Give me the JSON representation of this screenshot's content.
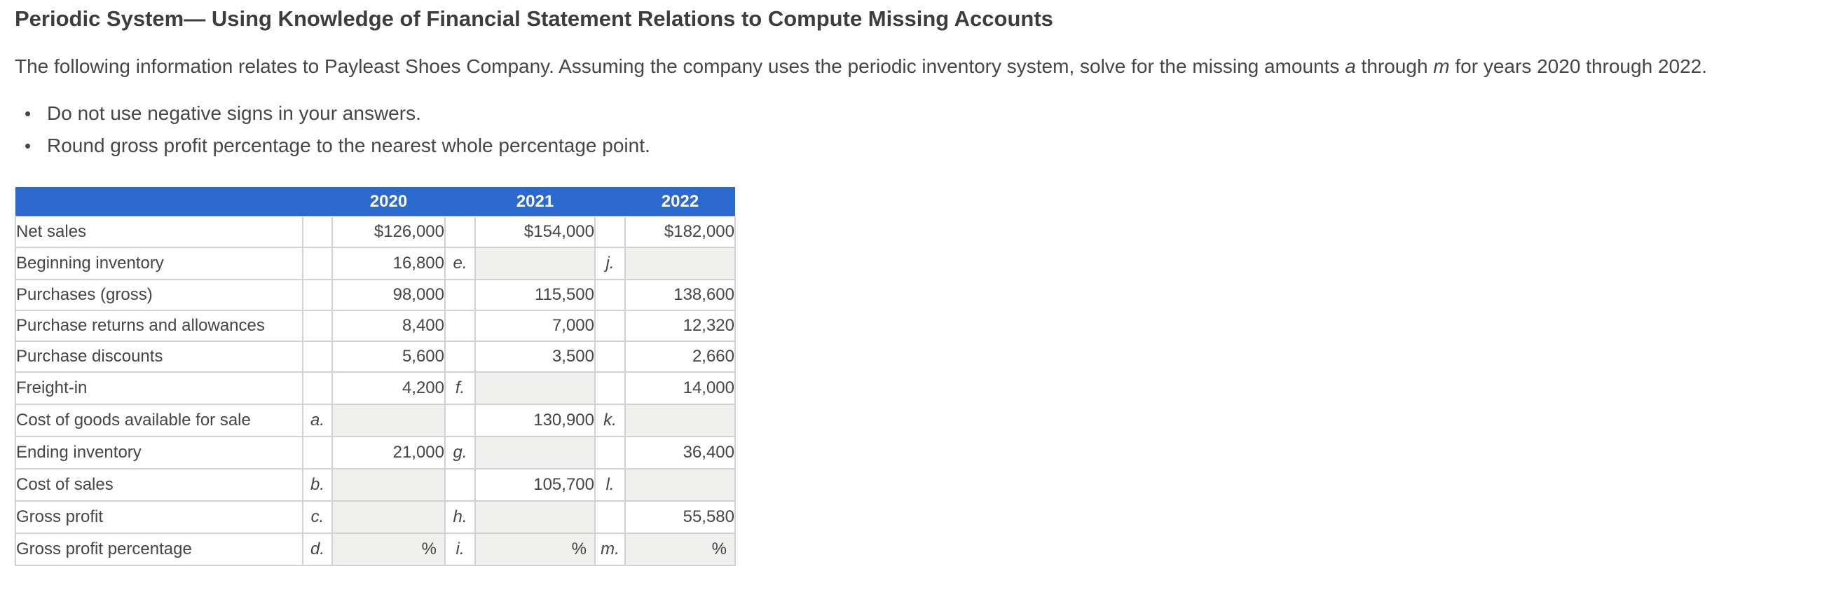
{
  "colors": {
    "header_bg": "#2c69cf",
    "header_text": "#ffffff",
    "input_bg": "#f0f0ef",
    "cell_border": "#d2d2d2",
    "body_text": "#454545"
  },
  "page": {
    "title": "Periodic System— Using Knowledge of Financial Statement Relations to Compute Missing Accounts",
    "intro": {
      "text_start": "The following information relates to Payleast Shoes Company. Assuming the company uses the periodic inventory system, solve for the missing amounts ",
      "var_a": "a",
      "text_mid": " through ",
      "var_m": "m",
      "text_end": " for years 2020 through 2022."
    },
    "bullets": [
      "Do not use negative signs in your answers.",
      "Round gross profit percentage to the nearest whole percentage point."
    ]
  },
  "table": {
    "year_headers": [
      "2020",
      "2021",
      "2022"
    ],
    "percent_sign": "%",
    "rows": [
      {
        "label": "Net sales",
        "cells": [
          {
            "letter": "",
            "type": "value",
            "value": "$126,000"
          },
          {
            "letter": "",
            "type": "value",
            "value": "$154,000"
          },
          {
            "letter": "",
            "type": "value",
            "value": "$182,000"
          }
        ]
      },
      {
        "label": "Beginning inventory",
        "cells": [
          {
            "letter": "",
            "type": "value",
            "value": "16,800"
          },
          {
            "letter": "e.",
            "type": "input",
            "value": ""
          },
          {
            "letter": "j.",
            "type": "input",
            "value": ""
          }
        ]
      },
      {
        "label": "Purchases (gross)",
        "cells": [
          {
            "letter": "",
            "type": "value",
            "value": "98,000"
          },
          {
            "letter": "",
            "type": "value",
            "value": "115,500"
          },
          {
            "letter": "",
            "type": "value",
            "value": "138,600"
          }
        ]
      },
      {
        "label": "Purchase returns and allowances",
        "cells": [
          {
            "letter": "",
            "type": "value",
            "value": "8,400"
          },
          {
            "letter": "",
            "type": "value",
            "value": "7,000"
          },
          {
            "letter": "",
            "type": "value",
            "value": "12,320"
          }
        ]
      },
      {
        "label": "Purchase discounts",
        "cells": [
          {
            "letter": "",
            "type": "value",
            "value": "5,600"
          },
          {
            "letter": "",
            "type": "value",
            "value": "3,500"
          },
          {
            "letter": "",
            "type": "value",
            "value": "2,660"
          }
        ]
      },
      {
        "label": "Freight-in",
        "cells": [
          {
            "letter": "",
            "type": "value",
            "value": "4,200"
          },
          {
            "letter": "f.",
            "type": "input",
            "value": ""
          },
          {
            "letter": "",
            "type": "value",
            "value": "14,000"
          }
        ]
      },
      {
        "label": "Cost of goods available for sale",
        "cells": [
          {
            "letter": "a.",
            "type": "input",
            "value": ""
          },
          {
            "letter": "",
            "type": "value",
            "value": "130,900"
          },
          {
            "letter": "k.",
            "type": "input",
            "value": ""
          }
        ]
      },
      {
        "label": "Ending inventory",
        "cells": [
          {
            "letter": "",
            "type": "value",
            "value": "21,000"
          },
          {
            "letter": "g.",
            "type": "input",
            "value": ""
          },
          {
            "letter": "",
            "type": "value",
            "value": "36,400"
          }
        ]
      },
      {
        "label": "Cost of sales",
        "cells": [
          {
            "letter": "b.",
            "type": "input",
            "value": ""
          },
          {
            "letter": "",
            "type": "value",
            "value": "105,700"
          },
          {
            "letter": "l.",
            "type": "input",
            "value": ""
          }
        ]
      },
      {
        "label": "Gross profit",
        "cells": [
          {
            "letter": "c.",
            "type": "input",
            "value": ""
          },
          {
            "letter": "h.",
            "type": "input",
            "value": ""
          },
          {
            "letter": "",
            "type": "value",
            "value": "55,580"
          }
        ]
      },
      {
        "label": "Gross profit percentage",
        "cells": [
          {
            "letter": "d.",
            "type": "input_percent",
            "value": ""
          },
          {
            "letter": "i.",
            "type": "input_percent",
            "value": ""
          },
          {
            "letter": "m.",
            "type": "input_percent",
            "value": ""
          }
        ]
      }
    ]
  }
}
